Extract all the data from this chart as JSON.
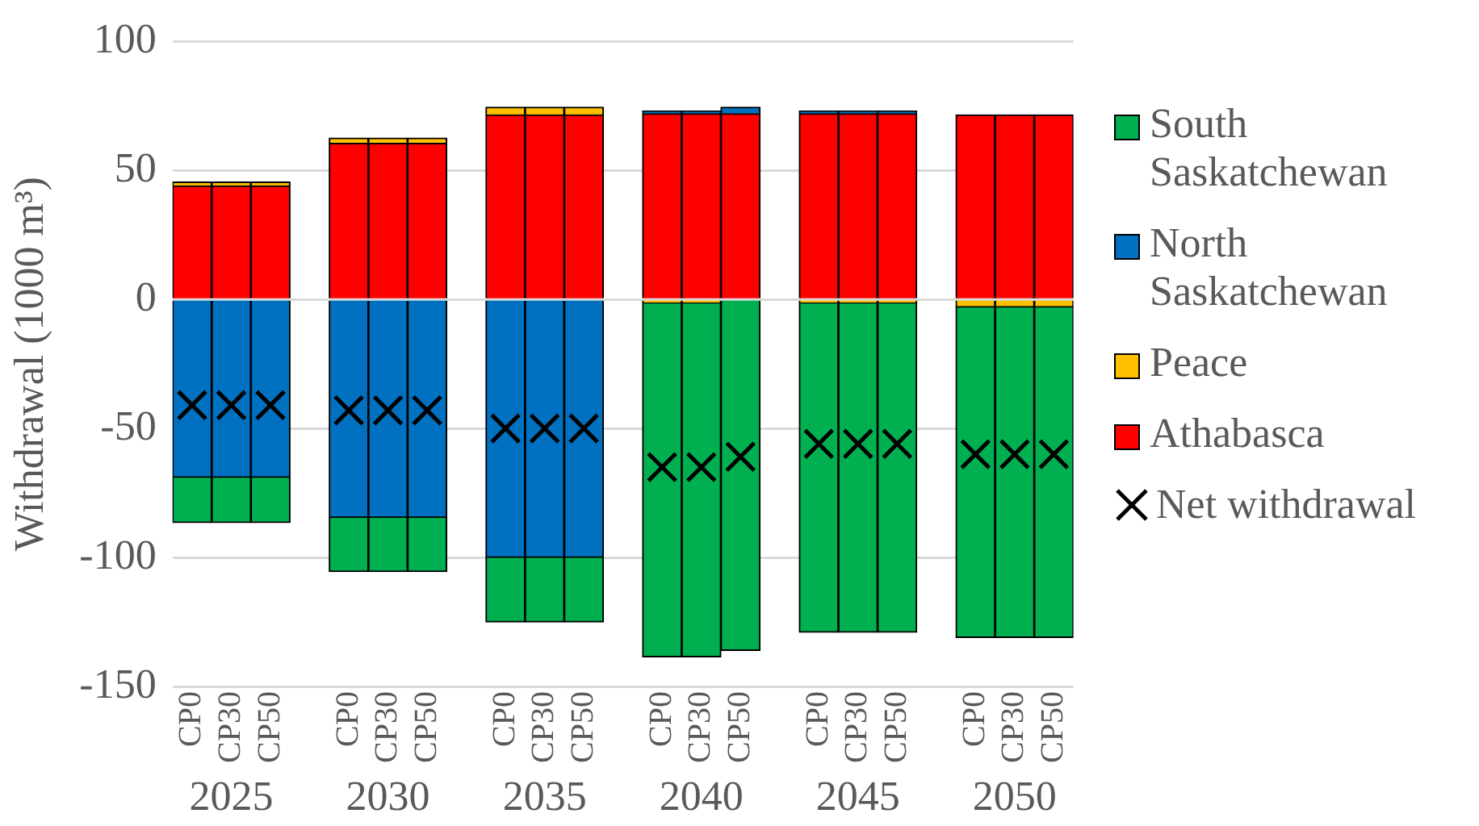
{
  "chart_data": {
    "type": "bar",
    "stacked": true,
    "ylabel": "Withdrawal (1000 m³)",
    "categories": [
      "CP0",
      "CP30",
      "CP50",
      "CP0",
      "CP30",
      "CP50",
      "CP0",
      "CP30",
      "CP50",
      "CP0",
      "CP30",
      "CP50",
      "CP0",
      "CP30",
      "CP50",
      "CP0",
      "CP30",
      "CP50"
    ],
    "annotations": [
      "2025",
      "2030",
      "2035",
      "2040",
      "2045",
      "2050"
    ],
    "ylim": [
      -150,
      100
    ],
    "yticks": [
      -150,
      -100,
      -50,
      0,
      50,
      100
    ],
    "grid": "y",
    "legend": "right",
    "series": [
      {
        "name": "Athabasca",
        "color": "#ff0000",
        "values": [
          44,
          44,
          44,
          60.5,
          60.5,
          60.5,
          71.5,
          71.5,
          71.5,
          72,
          72,
          72,
          72,
          72,
          72,
          71.5,
          71.5,
          71.5
        ]
      },
      {
        "name": "Peace",
        "color": "#ffc000",
        "values": [
          1.5,
          1.5,
          1.5,
          2,
          2,
          2,
          3,
          3,
          3,
          -1.5,
          -1.5,
          0,
          -1.5,
          -1.5,
          -1.5,
          -3,
          -3,
          -3
        ]
      },
      {
        "name": "North Saskatchewan",
        "color": "#0070c0",
        "values": [
          -69,
          -69,
          -69,
          -84.5,
          -84.5,
          -84.5,
          -100,
          -100,
          -100,
          1,
          1,
          2.5,
          1,
          1,
          1,
          0,
          0,
          0
        ]
      },
      {
        "name": "South Saskatchewan",
        "color": "#00b050",
        "values": [
          -17.5,
          -17.5,
          -17.5,
          -21,
          -21,
          -21,
          -25,
          -25,
          -25,
          -137,
          -137,
          -136,
          -127.5,
          -127.5,
          -127.5,
          -128,
          -128,
          -128
        ]
      },
      {
        "name": "Net withdrawal",
        "type": "scatter",
        "marker": "cross",
        "color": "#000000",
        "values": [
          -41,
          -41,
          -41,
          -43,
          -43,
          -43,
          -50,
          -50,
          -50,
          -65,
          -65,
          -61,
          -56,
          -56,
          -56,
          -60,
          -60,
          -60
        ]
      }
    ]
  }
}
